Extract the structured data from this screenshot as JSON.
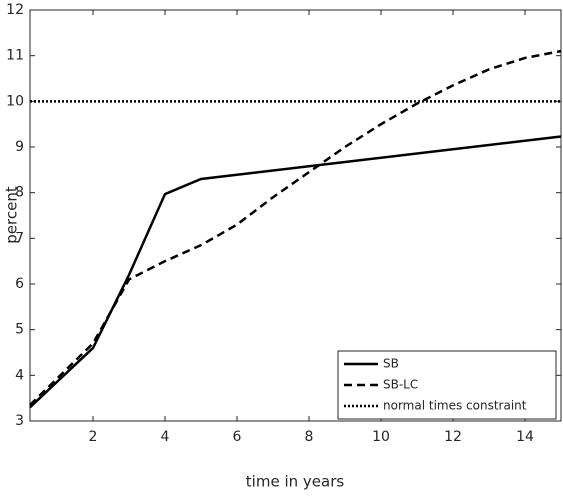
{
  "chart_data": {
    "type": "line",
    "xlabel": "time in years",
    "ylabel": "percent",
    "xlim": [
      0.25,
      15
    ],
    "ylim": [
      3,
      12
    ],
    "xticks": [
      2,
      4,
      6,
      8,
      10,
      12,
      14
    ],
    "yticks": [
      3,
      4,
      5,
      6,
      7,
      8,
      9,
      10,
      11,
      12
    ],
    "legend": "lower right",
    "series": [
      {
        "name": "SB",
        "color": "#000000",
        "style": "solid",
        "x": [
          0.25,
          2,
          3,
          4,
          5,
          15
        ],
        "values": [
          3.3,
          4.6,
          6.2,
          7.97,
          8.3,
          9.23
        ]
      },
      {
        "name": "SB-LC",
        "color": "#000000",
        "style": "dashed",
        "x": [
          0.25,
          2,
          3,
          4,
          5,
          6,
          7,
          8,
          9,
          10,
          11,
          12,
          13,
          14,
          15
        ],
        "values": [
          3.35,
          4.7,
          6.1,
          6.5,
          6.85,
          7.3,
          7.9,
          8.45,
          9.0,
          9.5,
          9.95,
          10.35,
          10.7,
          10.95,
          11.1
        ]
      },
      {
        "name": "normal times constraint",
        "color": "#000000",
        "style": "dotted",
        "x": [
          0.25,
          15
        ],
        "values": [
          10,
          10
        ]
      }
    ]
  }
}
